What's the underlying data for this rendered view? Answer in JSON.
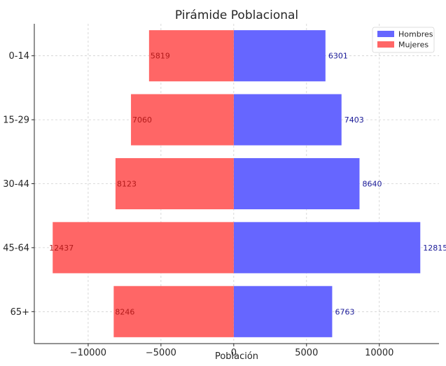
{
  "chart_data": {
    "type": "bar",
    "orientation": "horizontal",
    "title": "Pirámide Poblacional",
    "xlabel": "Población",
    "ylabel": "",
    "categories": [
      "0-14",
      "15-29",
      "30-44",
      "45-64",
      "65+"
    ],
    "series": [
      {
        "name": "Hombres",
        "values": [
          6301,
          7403,
          8640,
          12815,
          6763
        ],
        "color": "#6666ff",
        "label_color": "#1a1a99"
      },
      {
        "name": "Mujeres",
        "values": [
          -5819,
          -7060,
          -8123,
          -12437,
          -8246
        ],
        "color": "#ff6666",
        "label_color": "#b21a1a"
      }
    ],
    "data_labels": {
      "Hombres": [
        "6301",
        "7403",
        "8640",
        "12815",
        "6763"
      ],
      "Mujeres": [
        "5819",
        "7060",
        "8123",
        "12437",
        "8246"
      ]
    },
    "xticks": [
      -10000,
      -5000,
      0,
      5000,
      10000
    ],
    "xtick_labels": [
      "−10000",
      "−5000",
      "0",
      "5000",
      "10000"
    ],
    "xlim": [
      -13700,
      14100
    ],
    "grid": true,
    "grid_style": "dashed",
    "legend_position": "top-right"
  }
}
